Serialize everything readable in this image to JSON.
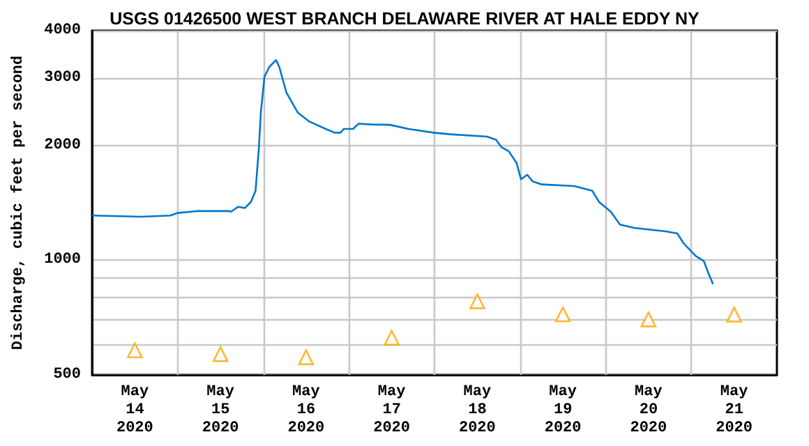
{
  "chart_data": {
    "type": "line",
    "title": "USGS 01426500 WEST BRANCH DELAWARE RIVER AT HALE EDDY NY",
    "ylabel": "Discharge, cubic feet per second",
    "log": true,
    "grid": true,
    "xlim": [
      "2020-05-14T00:00",
      "2020-05-22T00:00"
    ],
    "xticks": [
      {
        "value": "2020-05-14T12:00",
        "label": "May\n14\n2020"
      },
      {
        "value": "2020-05-15T00:00",
        "label": null
      },
      {
        "value": "2020-05-15T12:00",
        "label": "May\n15\n2020"
      },
      {
        "value": "2020-05-16T00:00",
        "label": null
      },
      {
        "value": "2020-05-16T12:00",
        "label": "May\n16\n2020"
      },
      {
        "value": "2020-05-17T00:00",
        "label": null
      },
      {
        "value": "2020-05-17T12:00",
        "label": "May\n17\n2020"
      },
      {
        "value": "2020-05-18T00:00",
        "label": null
      },
      {
        "value": "2020-05-18T12:00",
        "label": "May\n18\n2020"
      },
      {
        "value": "2020-05-19T00:00",
        "label": null
      },
      {
        "value": "2020-05-19T12:00",
        "label": "May\n19\n2020"
      },
      {
        "value": "2020-05-20T00:00",
        "label": null
      },
      {
        "value": "2020-05-20T12:00",
        "label": "May\n20\n2020"
      },
      {
        "value": "2020-05-21T00:00",
        "label": null
      },
      {
        "value": "2020-05-21T12:00",
        "label": "May\n21\n2020"
      }
    ],
    "ylim": [
      500,
      4000
    ],
    "yticks": [
      500,
      {
        "value": 600,
        "label": null
      },
      {
        "value": 700,
        "label": null
      },
      {
        "value": 800,
        "label": null
      },
      {
        "value": 900,
        "label": null
      },
      1000,
      2000,
      3000,
      4000
    ],
    "series": [
      {
        "color": "#0077cc",
        "marker": "none",
        "line_style": "solid",
        "x": [
          "2020-05-14T00:00",
          "2020-05-14T13:50",
          "2020-05-14T22:00",
          "2020-05-15T00:00",
          "2020-05-15T05:15",
          "2020-05-15T14:20",
          "2020-05-15T15:00",
          "2020-05-15T16:55",
          "2020-05-15T18:50",
          "2020-05-15T20:30",
          "2020-05-15T21:50",
          "2020-05-15T22:45",
          "2020-05-15T23:20",
          "2020-05-16T00:20",
          "2020-05-16T01:40",
          "2020-05-16T03:35",
          "2020-05-16T04:30",
          "2020-05-16T06:30",
          "2020-05-16T09:40",
          "2020-05-16T12:55",
          "2020-05-16T17:30",
          "2020-05-16T20:00",
          "2020-05-16T21:40",
          "2020-05-16T22:35",
          "2020-05-17T01:10",
          "2020-05-17T02:45",
          "2020-05-17T06:15",
          "2020-05-17T11:30",
          "2020-05-17T16:40",
          "2020-05-17T23:45",
          "2020-05-18T04:15",
          "2020-05-18T14:40",
          "2020-05-18T17:15",
          "2020-05-18T18:45",
          "2020-05-18T20:50",
          "2020-05-18T23:00",
          "2020-05-19T00:15",
          "2020-05-19T02:00",
          "2020-05-19T03:30",
          "2020-05-19T06:05",
          "2020-05-19T15:10",
          "2020-05-19T20:15",
          "2020-05-19T22:10",
          "2020-05-20T01:25",
          "2020-05-20T04:00",
          "2020-05-20T07:55",
          "2020-05-20T16:50",
          "2020-05-20T20:05",
          "2020-05-20T21:45",
          "2020-05-21T01:15",
          "2020-05-21T03:30",
          "2020-05-21T04:35",
          "2020-05-21T06:05"
        ],
        "values": [
          1310,
          1300,
          1310,
          1330,
          1345,
          1345,
          1340,
          1380,
          1370,
          1420,
          1520,
          1960,
          2450,
          3030,
          3210,
          3350,
          3210,
          2750,
          2440,
          2310,
          2210,
          2160,
          2160,
          2210,
          2210,
          2280,
          2270,
          2265,
          2210,
          2160,
          2140,
          2110,
          2070,
          1980,
          1930,
          1800,
          1630,
          1675,
          1610,
          1580,
          1565,
          1520,
          1420,
          1340,
          1240,
          1215,
          1190,
          1175,
          1110,
          1025,
          995,
          935,
          865
        ]
      },
      {
        "type": "scatter",
        "color": "#ffa500",
        "marker": "triangle",
        "x": [
          "2020-05-14T12:00",
          "2020-05-15T12:00",
          "2020-05-16T12:00",
          "2020-05-17T12:00",
          "2020-05-18T12:00",
          "2020-05-19T12:00",
          "2020-05-20T12:00",
          "2020-05-21T12:00"
        ],
        "values": [
          580,
          567,
          556,
          626,
          780,
          721,
          699,
          720
        ]
      }
    ]
  }
}
